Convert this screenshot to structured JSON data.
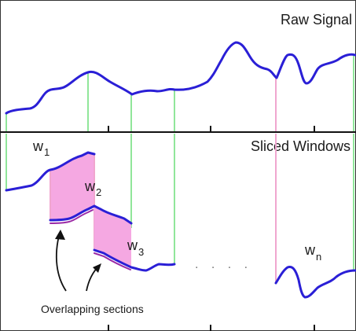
{
  "title_raw": "Raw Signal",
  "title_windows": "Sliced Windows",
  "window_labels": [
    {
      "base": "w",
      "sub": "1"
    },
    {
      "base": "w",
      "sub": "2"
    },
    {
      "base": "w",
      "sub": "3"
    },
    {
      "base": "w",
      "sub": "n"
    }
  ],
  "ellipsis": ". . . .",
  "overlap_label": "Overlapping sections",
  "colors": {
    "signal": "#2a1fd6",
    "overlap_fill": "#f5a8e2",
    "overlap_edge": "#9b2aa6",
    "green_divider": "#90e69a",
    "pink_divider": "#f0a6cf",
    "axis": "#111111"
  }
}
